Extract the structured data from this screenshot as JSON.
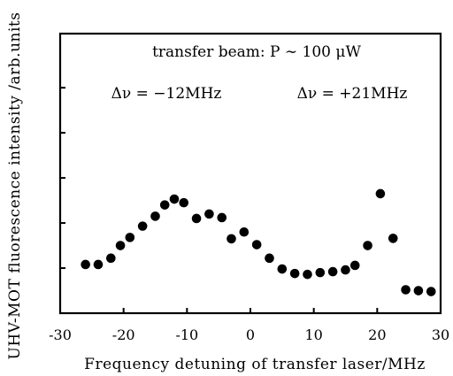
{
  "chart_data": {
    "type": "scatter",
    "title": "",
    "xlabel": "Frequency  detuning  of  transfer  laser/MHz",
    "ylabel": "UHV-MOT fluorescence intensity /arb.units",
    "xlim": [
      -30,
      30
    ],
    "ylim": [
      0,
      6.2
    ],
    "xticks": [
      -30,
      -20,
      -10,
      0,
      10,
      20,
      30
    ],
    "xtick_labels": [
      "-30",
      "-20",
      "-10",
      "0",
      "10",
      "20",
      "30"
    ],
    "yticks": [
      1,
      2,
      3,
      4,
      5
    ],
    "ytick_labels": [
      "",
      "",
      "",
      "",
      ""
    ],
    "grid": false,
    "legend": "none",
    "annotations": [
      {
        "text": "transfer  beam:  P ∼ 100 μW",
        "location": "top-center"
      },
      {
        "text": "Δν = −12MHz",
        "location": "upper-left"
      },
      {
        "text": "Δν = +21MHz",
        "location": "upper-right"
      }
    ],
    "series": [
      {
        "marker": "filled-circle",
        "color": "#000000",
        "x": [
          -26,
          -24,
          -22,
          -20.5,
          -19,
          -17,
          -15,
          -13.5,
          -12,
          -10.5,
          -8.5,
          -6.5,
          -4.5,
          -3,
          -1,
          1,
          3,
          5,
          7,
          9,
          11,
          13,
          15,
          16.5,
          18.5,
          20.5,
          22.5,
          24.5,
          26.5,
          28.5
        ],
        "y": [
          1.08,
          1.08,
          1.22,
          1.5,
          1.68,
          1.93,
          2.15,
          2.4,
          2.53,
          2.45,
          2.1,
          2.2,
          2.12,
          1.65,
          1.8,
          1.52,
          1.22,
          0.98,
          0.88,
          0.86,
          0.9,
          0.92,
          0.96,
          1.06,
          1.5,
          2.65,
          1.66,
          0.52,
          0.5,
          0.48
        ]
      }
    ]
  },
  "colors": {
    "axis": "#000000",
    "marker": "#000000",
    "background": "#ffffff"
  }
}
